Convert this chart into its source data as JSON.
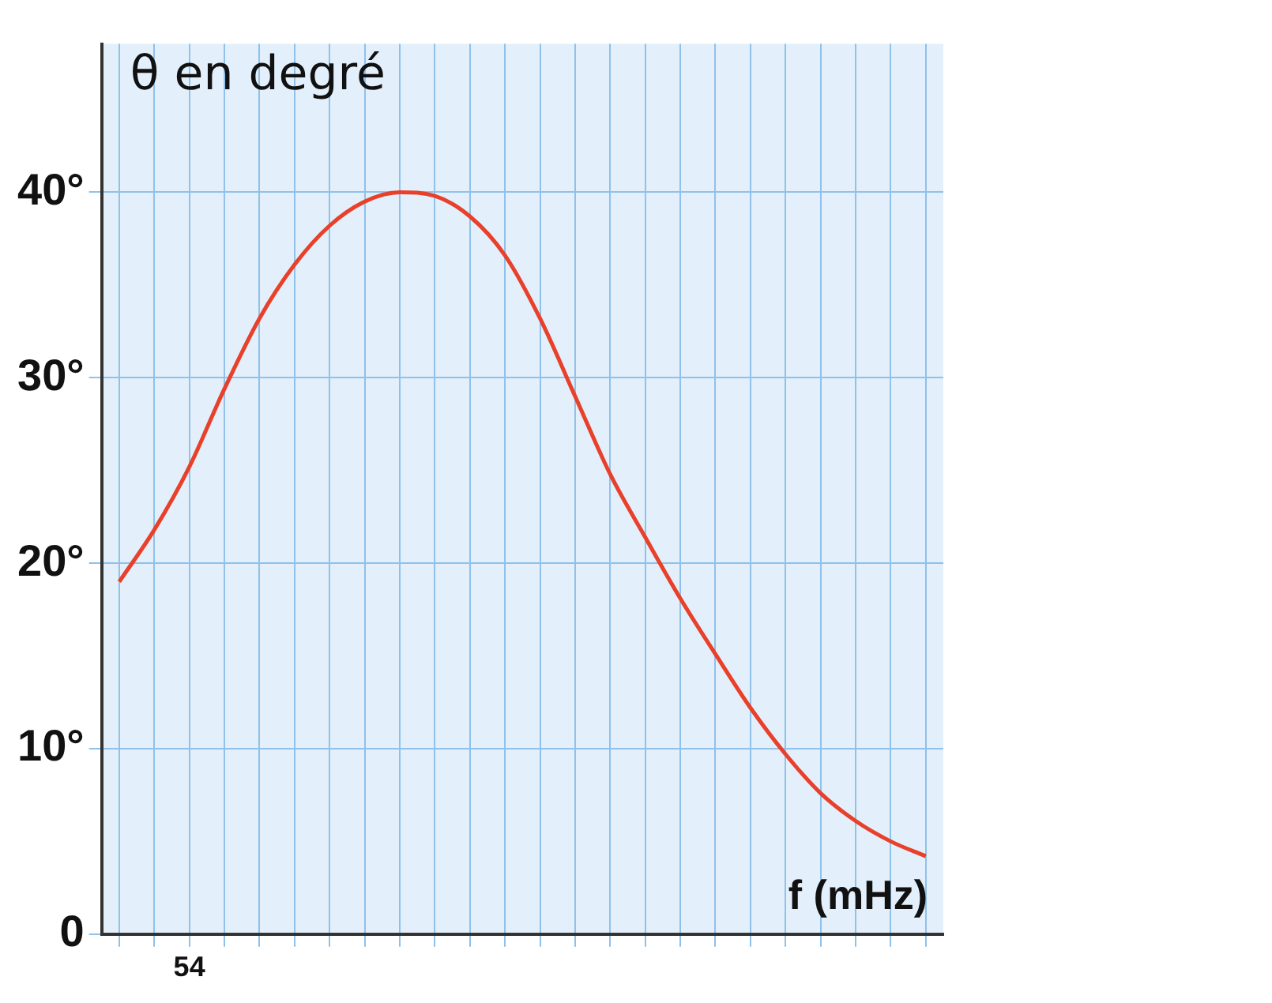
{
  "chart_data": {
    "type": "line",
    "ylabel": "θ en degré",
    "xlabel": "f (mHz)",
    "categories": [
      null,
      null,
      "54",
      null,
      null,
      null,
      null,
      null,
      null,
      null,
      null,
      null,
      null,
      null,
      null,
      null,
      null,
      null,
      null,
      null,
      null,
      null,
      null,
      null
    ],
    "series": [
      {
        "color": "#e8402a",
        "values": [
          19,
          21.8,
          25.2,
          29.4,
          33.2,
          36.1,
          38.2,
          39.5,
          40,
          39.8,
          38.7,
          36.6,
          33.2,
          29,
          24.8,
          21.4,
          18.1,
          15.1,
          12.2,
          9.7,
          7.6,
          6.1,
          5,
          4.2
        ]
      }
    ],
    "ylim": [
      0,
      48
    ],
    "yticks": [
      {
        "value": 0,
        "label": "0"
      },
      {
        "value": 10,
        "label": "10°"
      },
      {
        "value": 20,
        "label": "20°"
      },
      {
        "value": 30,
        "label": "30°"
      },
      {
        "value": 40,
        "label": "40°"
      }
    ],
    "grid": true,
    "marker": "none",
    "line_style": "solid"
  }
}
